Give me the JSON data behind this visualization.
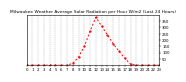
{
  "title": "Milwaukee Weather Average Solar Radiation per Hour W/m2 (Last 24 Hours)",
  "x": [
    0,
    1,
    2,
    3,
    4,
    5,
    6,
    7,
    8,
    9,
    10,
    11,
    12,
    13,
    14,
    15,
    16,
    17,
    18,
    19,
    20,
    21,
    22,
    23
  ],
  "y": [
    0,
    0,
    0,
    0,
    0,
    0,
    0,
    0,
    15,
    65,
    150,
    270,
    380,
    310,
    240,
    170,
    110,
    55,
    8,
    0,
    0,
    0,
    0,
    0
  ],
  "line_color": "#ff0000",
  "background_color": "#ffffff",
  "grid_color": "#999999",
  "ylim": [
    0,
    400
  ],
  "xlim": [
    0,
    23
  ],
  "yticks": [
    50,
    100,
    150,
    200,
    250,
    300,
    350
  ],
  "title_fontsize": 3.2,
  "tick_fontsize": 2.8,
  "line_width": 0.7,
  "marker_size": 1.2
}
